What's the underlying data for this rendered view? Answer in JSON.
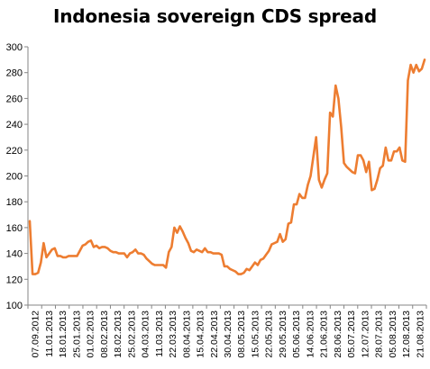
{
  "chart_data": {
    "type": "line",
    "title": "Indonesia sovereign CDS spread",
    "xlabel": "",
    "ylabel": "",
    "ylim": [
      100,
      300
    ],
    "yticks": [
      100,
      120,
      140,
      160,
      180,
      200,
      220,
      240,
      260,
      280,
      300
    ],
    "grid": false,
    "legend": "none",
    "line_color": "#ED7D31",
    "x_tick_labels": [
      "07.09.2012",
      "11.01.2013",
      "18.01.2013",
      "25.01.2013",
      "01.02.2013",
      "08.02.2013",
      "18.02.2013",
      "25.02.2013",
      "04.03.2013",
      "11.03.2013",
      "22.03.2013",
      "08.04.2013",
      "15.04.2013",
      "22.04.2013",
      "30.04.2013",
      "08.05.2013",
      "15.05.2013",
      "22.05.2013",
      "29.05.2013",
      "05.06.2013",
      "14.06.2013",
      "21.06.2013",
      "28.06.2013",
      "05.07.2013",
      "12.07.2013",
      "28.07.2013",
      "05.08.2013",
      "12.08.2013",
      "21.08.2013"
    ],
    "series": [
      {
        "values": [
          165,
          124,
          124,
          125,
          133,
          148,
          137,
          140,
          143,
          144,
          138,
          138,
          137,
          137,
          138,
          138,
          138,
          138,
          142,
          146,
          147,
          149,
          150,
          145,
          146,
          144,
          145,
          145,
          144,
          142,
          141,
          141,
          140,
          140,
          140,
          137,
          140,
          141,
          143,
          140,
          140,
          139,
          136,
          134,
          132,
          131,
          131,
          131,
          131,
          129,
          141,
          145,
          160,
          156,
          161,
          157,
          152,
          148,
          142,
          141,
          143,
          142,
          141,
          144,
          141,
          141,
          140,
          140,
          140,
          139,
          130,
          130,
          128,
          127,
          126,
          124,
          124,
          125,
          128,
          127,
          130,
          133,
          131,
          135,
          136,
          139,
          142,
          147,
          148,
          149,
          155,
          149,
          151,
          163,
          164,
          178,
          178,
          186,
          183,
          183,
          193,
          200,
          215,
          230,
          197,
          191,
          197,
          202,
          249,
          246,
          270,
          260,
          238,
          210,
          207,
          205,
          203,
          202,
          216,
          216,
          212,
          203,
          211,
          189,
          190,
          197,
          206,
          208,
          222,
          212,
          212,
          219,
          219,
          222,
          212,
          211,
          274,
          286,
          280,
          286,
          281,
          283,
          290
        ]
      }
    ]
  }
}
